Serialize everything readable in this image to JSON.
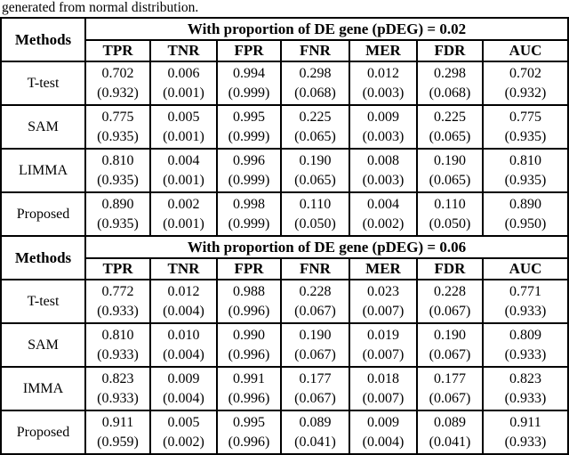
{
  "caption": "generated from normal distribution.",
  "table": {
    "methods_label": "Methods",
    "metric_headers": [
      "TPR",
      "TNR",
      "FPR",
      "FNR",
      "MER",
      "FDR",
      "AUC"
    ],
    "sections": [
      {
        "title": "With proportion of DE gene (pDEG) = 0.02",
        "rows": [
          {
            "method": "T-test",
            "cells": [
              [
                "0.702",
                "(0.932)"
              ],
              [
                "0.006",
                "(0.001)"
              ],
              [
                "0.994",
                "(0.999)"
              ],
              [
                "0.298",
                "(0.068)"
              ],
              [
                "0.012",
                "(0.003)"
              ],
              [
                "0.298",
                "(0.068)"
              ],
              [
                "0.702",
                "(0.932)"
              ]
            ]
          },
          {
            "method": "SAM",
            "cells": [
              [
                "0.775",
                "(0.935)"
              ],
              [
                "0.005",
                "(0.001)"
              ],
              [
                "0.995",
                "(0.999)"
              ],
              [
                "0.225",
                "(0.065)"
              ],
              [
                "0.009",
                "(0.003)"
              ],
              [
                "0.225",
                "(0.065)"
              ],
              [
                "0.775",
                "(0.935)"
              ]
            ]
          },
          {
            "method": "LIMMA",
            "cells": [
              [
                "0.810",
                "(0.935)"
              ],
              [
                "0.004",
                "(0.001)"
              ],
              [
                "0.996",
                "(0.999)"
              ],
              [
                "0.190",
                "(0.065)"
              ],
              [
                "0.008",
                "(0.003)"
              ],
              [
                "0.190",
                "(0.065)"
              ],
              [
                "0.810",
                "(0.935)"
              ]
            ]
          },
          {
            "method": "Proposed",
            "cells": [
              [
                "0.890",
                "(0.935)"
              ],
              [
                "0.002",
                "(0.001)"
              ],
              [
                "0.998",
                "(0.999)"
              ],
              [
                "0.110",
                "(0.050)"
              ],
              [
                "0.004",
                "(0.002)"
              ],
              [
                "0.110",
                "(0.050)"
              ],
              [
                "0.890",
                "(0.950)"
              ]
            ]
          }
        ]
      },
      {
        "title": "With proportion of DE gene (pDEG) = 0.06",
        "rows": [
          {
            "method": "T-test",
            "cells": [
              [
                "0.772",
                "(0.933)"
              ],
              [
                "0.012",
                "(0.004)"
              ],
              [
                "0.988",
                "(0.996)"
              ],
              [
                "0.228",
                "(0.067)"
              ],
              [
                "0.023",
                "(0.007)"
              ],
              [
                "0.228",
                "(0.067)"
              ],
              [
                "0.771",
                "(0.933)"
              ]
            ]
          },
          {
            "method": "SAM",
            "cells": [
              [
                "0.810",
                "(0.933)"
              ],
              [
                "0.010",
                "(0.004)"
              ],
              [
                "0.990",
                "(0.996)"
              ],
              [
                "0.190",
                "(0.067)"
              ],
              [
                "0.019",
                "(0.007)"
              ],
              [
                "0.190",
                "(0.067)"
              ],
              [
                "0.809",
                "(0.933)"
              ]
            ]
          },
          {
            "method": "IMMA",
            "cells": [
              [
                "0.823",
                "(0.933)"
              ],
              [
                "0.009",
                "(0.004)"
              ],
              [
                "0.991",
                "(0.996)"
              ],
              [
                "0.177",
                "(0.067)"
              ],
              [
                "0.018",
                "(0.007)"
              ],
              [
                "0.177",
                "(0.067)"
              ],
              [
                "0.823",
                "(0.933)"
              ]
            ]
          },
          {
            "method": "Proposed",
            "cells": [
              [
                "0.911",
                "(0.959)"
              ],
              [
                "0.005",
                "(0.002)"
              ],
              [
                "0.995",
                "(0.996)"
              ],
              [
                "0.089",
                "(0.041)"
              ],
              [
                "0.009",
                "(0.004)"
              ],
              [
                "0.089",
                "(0.041)"
              ],
              [
                "0.911",
                "(0.933)"
              ]
            ]
          }
        ]
      }
    ]
  }
}
